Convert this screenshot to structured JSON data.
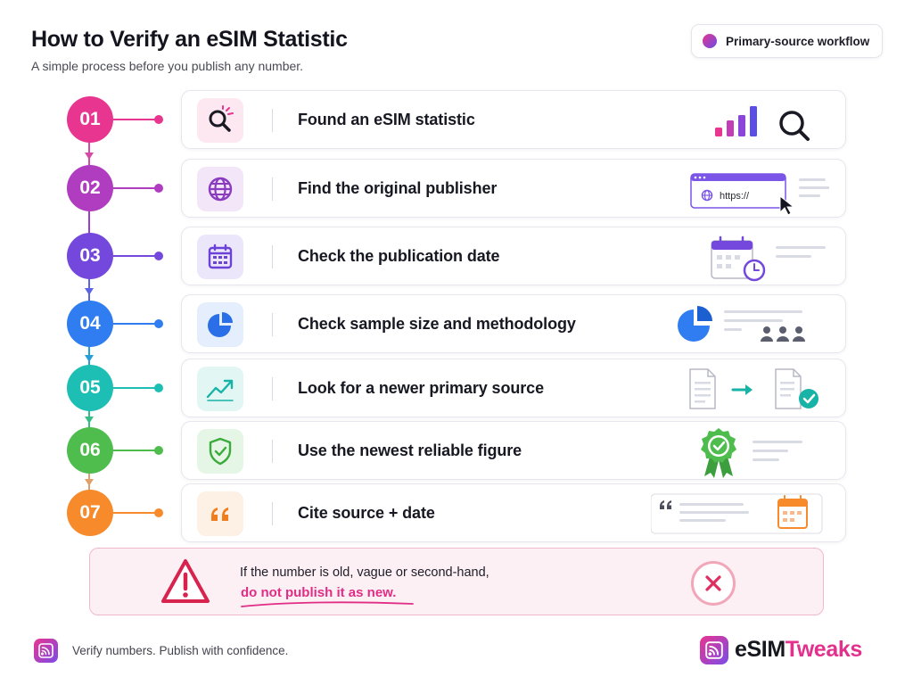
{
  "header": {
    "title": "How to Verify an eSIM Statistic",
    "subtitle": "A simple process before you publish any number.",
    "badge": "Primary-source workflow"
  },
  "steps": [
    {
      "number": "01",
      "label": "Found an eSIM statistic",
      "icon": "magnifier-icon",
      "color": "#e8358f"
    },
    {
      "number": "02",
      "label": "Find the original publisher",
      "icon": "globe-icon",
      "color": "#b03cc0"
    },
    {
      "number": "03",
      "label": "Check the publication date",
      "icon": "calendar-icon",
      "color": "#7448dc"
    },
    {
      "number": "04",
      "label": "Check sample size and methodology",
      "icon": "pie-chart-icon",
      "color": "#2f7df0"
    },
    {
      "number": "05",
      "label": "Look for a newer primary source",
      "icon": "trend-up-icon",
      "color": "#1dbfb4"
    },
    {
      "number": "06",
      "label": "Use the newest reliable figure",
      "icon": "shield-check-icon",
      "color": "#4ebd4e"
    },
    {
      "number": "07",
      "label": "Cite source + date",
      "icon": "quote-icon",
      "color": "#f78a2a"
    }
  ],
  "illustrations": {
    "url_text": "https://"
  },
  "warning": {
    "line1": "If the number is old, vague or second-hand,",
    "line2": "do not publish it as new."
  },
  "footer": {
    "tagline": "Verify numbers. Publish with confidence.",
    "brand_part1": "eSIM",
    "brand_part2": "Tweaks"
  }
}
